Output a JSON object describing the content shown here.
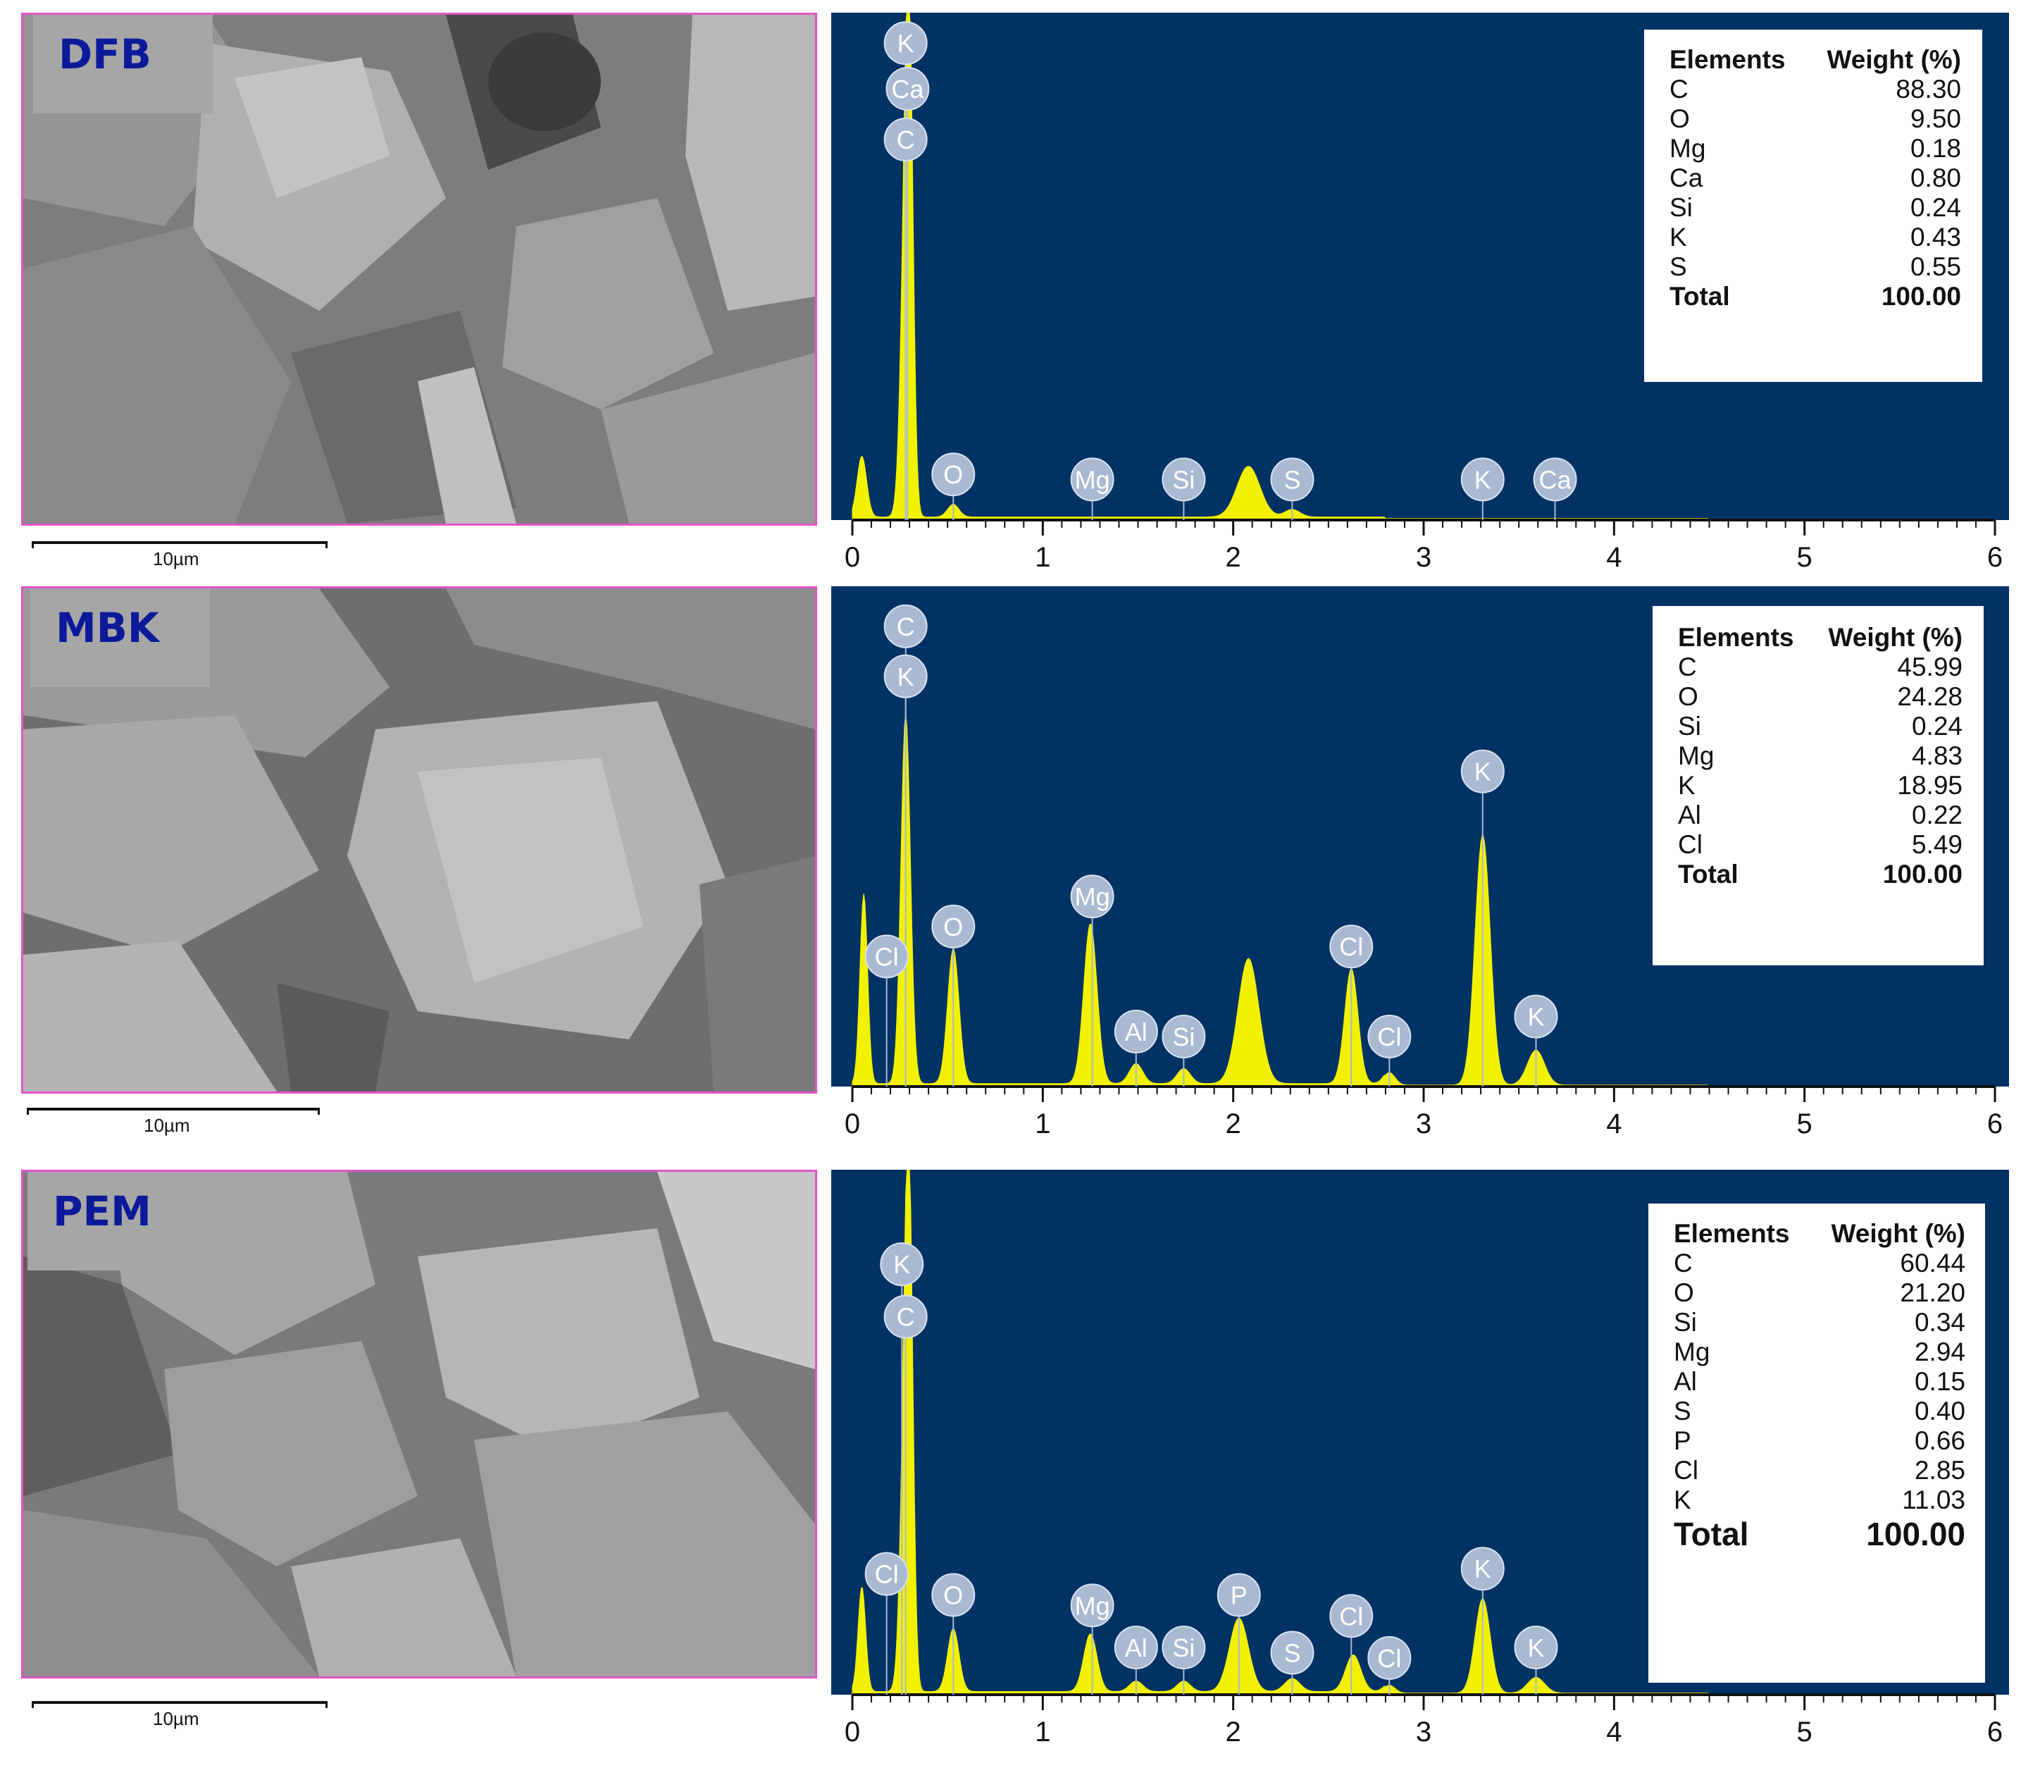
{
  "colors": {
    "spectrum_bg": "#003264",
    "spectrum_fill": "#f2f200",
    "marker_fill": "#a9b9d2",
    "label_box": "#a6a6a6",
    "label_text": "#0c1a9a",
    "sem_border": "#e055c8"
  },
  "panels": [
    {
      "sample": "DFB",
      "scale_text": "10µm",
      "table": {
        "header_elements": "Elements",
        "header_weight": "Weight (%)",
        "rows": [
          {
            "el": "C",
            "w": "88.30"
          },
          {
            "el": "O",
            "w": "9.50"
          },
          {
            "el": "Mg",
            "w": "0.18"
          },
          {
            "el": "Ca",
            "w": "0.80"
          },
          {
            "el": "Si",
            "w": "0.24"
          },
          {
            "el": "K",
            "w": "0.43"
          },
          {
            "el": "S",
            "w": "0.55"
          }
        ],
        "total_label": "Total",
        "total_value": "100.00"
      }
    },
    {
      "sample": "MBK",
      "scale_text": "10µm",
      "table": {
        "header_elements": "Elements",
        "header_weight": "Weight (%)",
        "rows": [
          {
            "el": "C",
            "w": "45.99"
          },
          {
            "el": "O",
            "w": "24.28"
          },
          {
            "el": "Si",
            "w": "0.24"
          },
          {
            "el": "Mg",
            "w": "4.83"
          },
          {
            "el": "K",
            "w": "18.95"
          },
          {
            "el": "Al",
            "w": "0.22"
          },
          {
            "el": "Cl",
            "w": "5.49"
          }
        ],
        "total_label": "Total",
        "total_value": "100.00"
      }
    },
    {
      "sample": "PEM",
      "scale_text": "10µm",
      "table": {
        "header_elements": "Elements",
        "header_weight": "Weight (%)",
        "rows": [
          {
            "el": "C",
            "w": "60.44"
          },
          {
            "el": "O",
            "w": "21.20"
          },
          {
            "el": "Si",
            "w": "0.34"
          },
          {
            "el": "Mg",
            "w": "2.94"
          },
          {
            "el": "Al",
            "w": "0.15"
          },
          {
            "el": "S",
            "w": "0.40"
          },
          {
            "el": "P",
            "w": "0.66"
          },
          {
            "el": "Cl",
            "w": "2.85"
          },
          {
            "el": "K",
            "w": "11.03"
          }
        ],
        "total_label": "Total",
        "total_value": "100.00"
      }
    }
  ],
  "chart_data": [
    {
      "type": "area",
      "sample": "DFB",
      "xlim": [
        0,
        6
      ],
      "ylim": [
        0,
        100
      ],
      "x_ticks": [
        "0",
        "1",
        "2",
        "3",
        "4",
        "5",
        "6"
      ],
      "peaks": [
        {
          "x": 0.05,
          "h": 12,
          "w": 0.025
        },
        {
          "x": 0.28,
          "h": 56,
          "w": 0.025
        },
        {
          "x": 0.3,
          "h": 68,
          "w": 0.02
        },
        {
          "x": 0.53,
          "h": 2.5,
          "w": 0.03
        },
        {
          "x": 2.08,
          "h": 10,
          "w": 0.06
        },
        {
          "x": 2.31,
          "h": 1.5,
          "w": 0.04
        }
      ],
      "markers": [
        {
          "el": "K",
          "x": 0.28,
          "y": 94
        },
        {
          "el": "Ca",
          "x": 0.29,
          "y": 85
        },
        {
          "el": "C",
          "x": 0.28,
          "y": 75
        },
        {
          "el": "O",
          "x": 0.53,
          "y": 9
        },
        {
          "el": "Mg",
          "x": 1.26,
          "y": 8
        },
        {
          "el": "Si",
          "x": 1.74,
          "y": 8
        },
        {
          "el": "S",
          "x": 2.31,
          "y": 8
        },
        {
          "el": "K",
          "x": 3.31,
          "y": 8
        },
        {
          "el": "Ca",
          "x": 3.69,
          "y": 8
        }
      ]
    },
    {
      "type": "area",
      "sample": "MBK",
      "xlim": [
        0,
        6
      ],
      "ylim": [
        0,
        100
      ],
      "x_ticks": [
        "0",
        "1",
        "2",
        "3",
        "4",
        "5",
        "6"
      ],
      "peaks": [
        {
          "x": 0.06,
          "h": 38,
          "w": 0.02
        },
        {
          "x": 0.28,
          "h": 74,
          "w": 0.025
        },
        {
          "x": 0.53,
          "h": 27,
          "w": 0.03
        },
        {
          "x": 1.25,
          "h": 32,
          "w": 0.035
        },
        {
          "x": 1.49,
          "h": 4,
          "w": 0.035
        },
        {
          "x": 1.74,
          "h": 3,
          "w": 0.035
        },
        {
          "x": 2.08,
          "h": 25,
          "w": 0.055
        },
        {
          "x": 2.62,
          "h": 23,
          "w": 0.035
        },
        {
          "x": 2.82,
          "h": 2.5,
          "w": 0.03
        },
        {
          "x": 3.31,
          "h": 50,
          "w": 0.04
        },
        {
          "x": 3.59,
          "h": 7,
          "w": 0.045
        }
      ],
      "markers": [
        {
          "el": "C",
          "x": 0.28,
          "y": 92
        },
        {
          "el": "K",
          "x": 0.28,
          "y": 82
        },
        {
          "el": "Cl",
          "x": 0.18,
          "y": 26
        },
        {
          "el": "O",
          "x": 0.53,
          "y": 32
        },
        {
          "el": "Mg",
          "x": 1.26,
          "y": 38
        },
        {
          "el": "Al",
          "x": 1.49,
          "y": 11
        },
        {
          "el": "Si",
          "x": 1.74,
          "y": 10
        },
        {
          "el": "Cl",
          "x": 2.62,
          "y": 28
        },
        {
          "el": "Cl",
          "x": 2.82,
          "y": 10
        },
        {
          "el": "K",
          "x": 3.31,
          "y": 63
        },
        {
          "el": "K",
          "x": 3.59,
          "y": 14
        }
      ]
    },
    {
      "type": "area",
      "sample": "PEM",
      "xlim": [
        0,
        6
      ],
      "ylim": [
        0,
        100
      ],
      "x_ticks": [
        "0",
        "1",
        "2",
        "3",
        "4",
        "5",
        "6"
      ],
      "peaks": [
        {
          "x": 0.05,
          "h": 20,
          "w": 0.02
        },
        {
          "x": 0.28,
          "h": 56,
          "w": 0.025
        },
        {
          "x": 0.3,
          "h": 64,
          "w": 0.02
        },
        {
          "x": 0.53,
          "h": 12,
          "w": 0.03
        },
        {
          "x": 1.25,
          "h": 11,
          "w": 0.035
        },
        {
          "x": 1.49,
          "h": 2,
          "w": 0.035
        },
        {
          "x": 1.74,
          "h": 2,
          "w": 0.035
        },
        {
          "x": 2.03,
          "h": 14,
          "w": 0.05
        },
        {
          "x": 2.31,
          "h": 2.5,
          "w": 0.04
        },
        {
          "x": 2.63,
          "h": 7,
          "w": 0.04
        },
        {
          "x": 2.82,
          "h": 1.5,
          "w": 0.03
        },
        {
          "x": 3.31,
          "h": 18,
          "w": 0.04
        },
        {
          "x": 3.59,
          "h": 3,
          "w": 0.045
        }
      ],
      "markers": [
        {
          "el": "K",
          "x": 0.26,
          "y": 82
        },
        {
          "el": "C",
          "x": 0.28,
          "y": 72
        },
        {
          "el": "Cl",
          "x": 0.18,
          "y": 23
        },
        {
          "el": "O",
          "x": 0.53,
          "y": 19
        },
        {
          "el": "Mg",
          "x": 1.26,
          "y": 17
        },
        {
          "el": "Al",
          "x": 1.49,
          "y": 9
        },
        {
          "el": "Si",
          "x": 1.74,
          "y": 9
        },
        {
          "el": "P",
          "x": 2.03,
          "y": 19
        },
        {
          "el": "S",
          "x": 2.31,
          "y": 8
        },
        {
          "el": "Cl",
          "x": 2.62,
          "y": 15
        },
        {
          "el": "Cl",
          "x": 2.82,
          "y": 7
        },
        {
          "el": "K",
          "x": 3.31,
          "y": 24
        },
        {
          "el": "K",
          "x": 3.59,
          "y": 9
        }
      ]
    }
  ]
}
